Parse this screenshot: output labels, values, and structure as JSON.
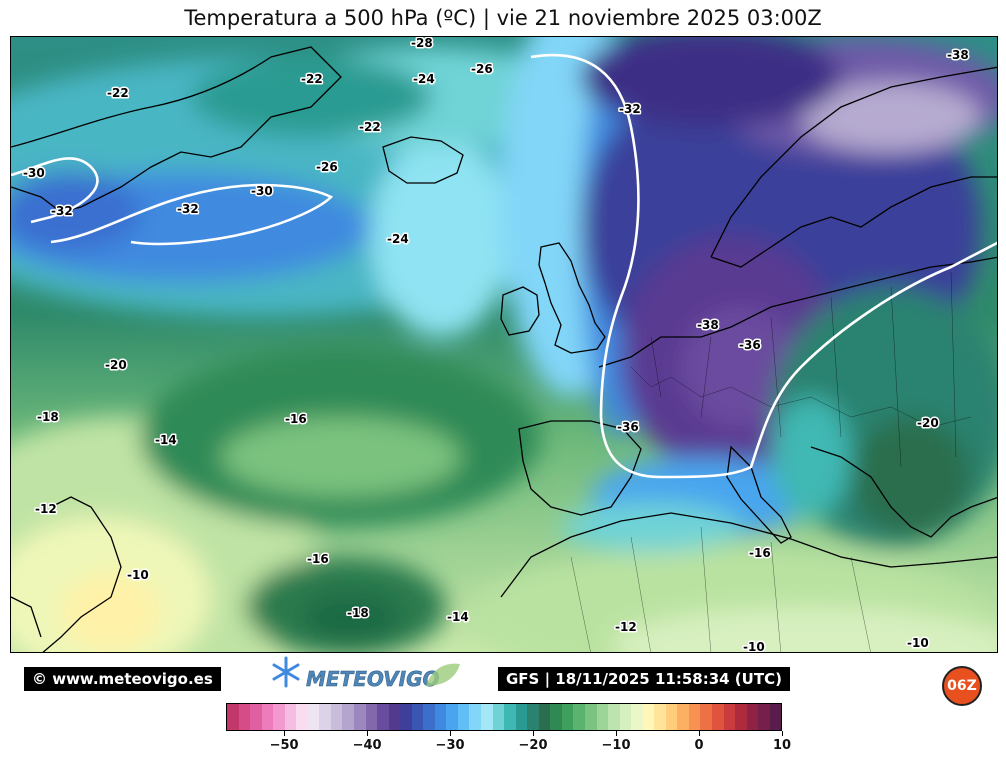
{
  "title": "Temperatura a 500 hPa (ºC) | vie 21 noviembre 2025 03:00Z",
  "footer": {
    "copyright": "© www.meteovigo.es",
    "brand": "METEOVIGO",
    "run_info": "GFS | 18/11/2025 11:58:34 (UTC)",
    "run_badge": "06Z"
  },
  "contour_labels": [
    "-28",
    "-26",
    "-24",
    "-22",
    "-22",
    "-22",
    "-26",
    "-32",
    "-30",
    "-30",
    "-32",
    "-32",
    "-24",
    "-20",
    "-18",
    "-16",
    "-14",
    "-12",
    "-10",
    "-16",
    "-18",
    "-14",
    "-12",
    "-10",
    "-10",
    "-16",
    "-36",
    "-36",
    "-38",
    "-38",
    "-20"
  ],
  "colorbar": {
    "min": -57,
    "max": 10,
    "tick_labels": [
      "−50",
      "−40",
      "−30",
      "−20",
      "−10",
      "0",
      "10"
    ],
    "tick_values": [
      -50,
      -40,
      -30,
      -20,
      -10,
      0,
      10
    ],
    "colors": [
      "#c2386a",
      "#d64c86",
      "#e05fa0",
      "#ec7cbc",
      "#f29ad0",
      "#f6bde2",
      "#fadcf0",
      "#efe4f2",
      "#ddd3e8",
      "#c9bddb",
      "#b3a5cd",
      "#9c87be",
      "#8368ad",
      "#6a4c9f",
      "#523a8f",
      "#3f3f9a",
      "#3a55b2",
      "#3b6fcb",
      "#3f8ae0",
      "#4aa5ee",
      "#62bff5",
      "#82d6f8",
      "#a4e8f8",
      "#6fd3d6",
      "#3fb8b3",
      "#2a9b92",
      "#2a826f",
      "#2a6e4e",
      "#2e8a52",
      "#3fa05e",
      "#5ab36e",
      "#7bc480",
      "#9cd597",
      "#bce4ae",
      "#d6efc0",
      "#ecf7c8",
      "#fff7b8",
      "#ffe49a",
      "#ffcd7c",
      "#fdb062",
      "#f79252",
      "#ee7146",
      "#e0533f",
      "#c93b3c",
      "#ad2b3d",
      "#902343",
      "#74204a",
      "#5a1c4c"
    ]
  }
}
